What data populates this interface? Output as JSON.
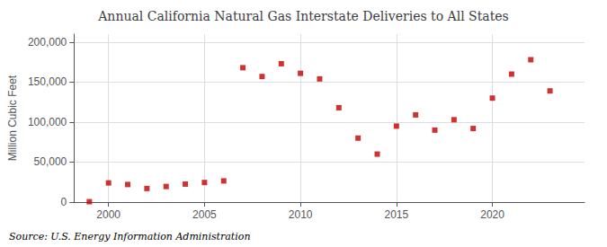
{
  "chart_data": {
    "type": "scatter",
    "title": "Annual California Natural Gas Interstate Deliveries to All States",
    "ylabel": "Million Cubic Feet",
    "source": "Source: U.S. Energy Information Administration",
    "x": [
      1999,
      2000,
      2001,
      2002,
      2003,
      2004,
      2005,
      2006,
      2007,
      2008,
      2009,
      2010,
      2011,
      2012,
      2013,
      2014,
      2015,
      2016,
      2017,
      2018,
      2019,
      2020,
      2021,
      2022,
      2023
    ],
    "values": [
      500,
      24000,
      22000,
      17000,
      19500,
      22500,
      24500,
      26500,
      168000,
      157000,
      173000,
      161000,
      154000,
      118000,
      80000,
      60000,
      95000,
      109000,
      90000,
      103000,
      92000,
      130000,
      160000,
      178000,
      139000
    ],
    "color": "#c00000",
    "marker": "square",
    "xlim": [
      1998.2,
      2024.8
    ],
    "xticks": [
      2000,
      2005,
      2010,
      2015,
      2020
    ],
    "ylim": [
      0,
      210000
    ],
    "yticks": [
      0,
      {
        "value": 50000,
        "label": "50,000"
      },
      {
        "value": 100000,
        "label": "100,000"
      },
      {
        "value": 150000,
        "label": "150,000"
      },
      {
        "value": 200000,
        "label": "200,000"
      }
    ],
    "grid": true
  }
}
